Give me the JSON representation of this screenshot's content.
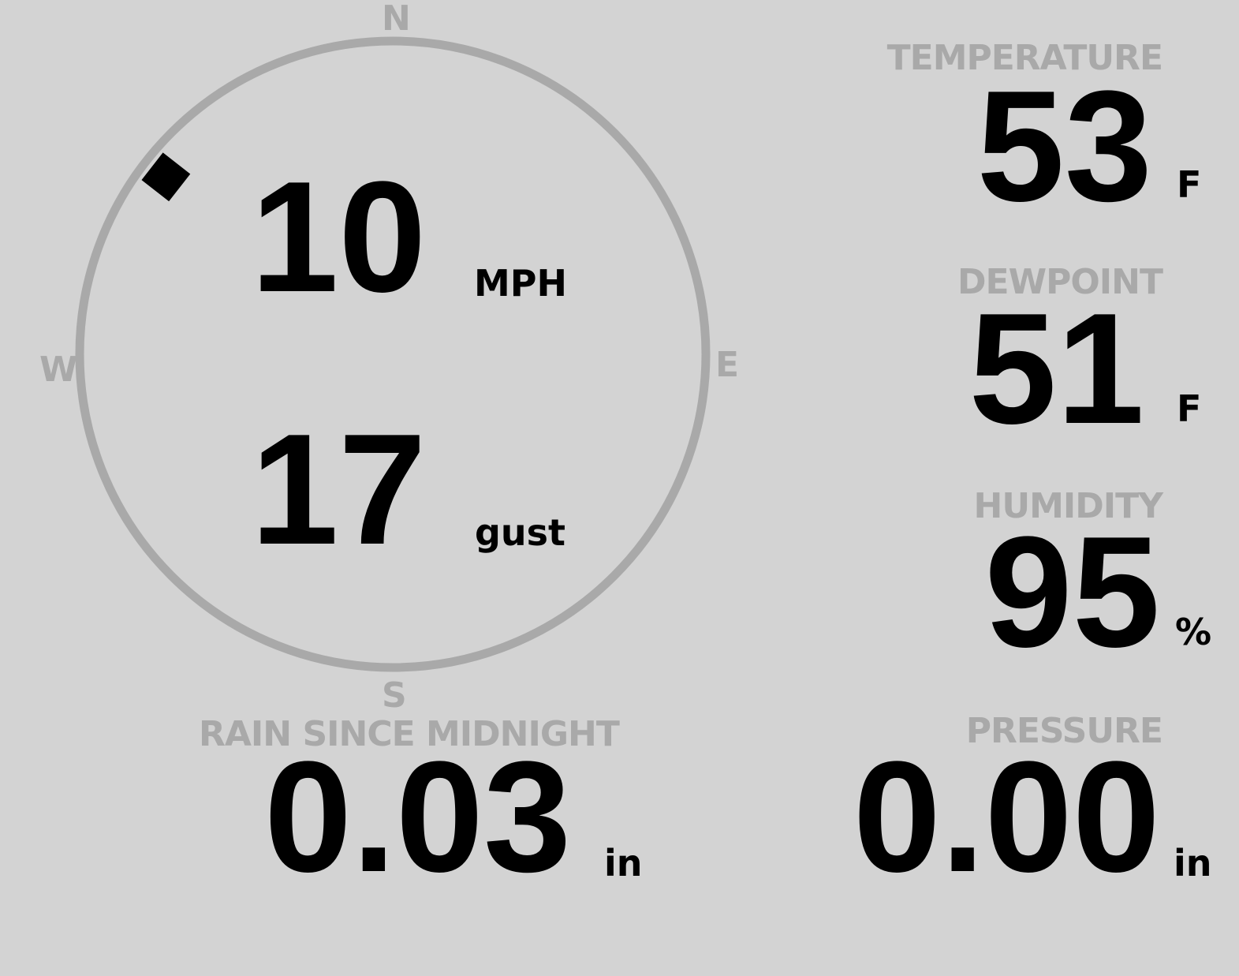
{
  "wind": {
    "compass": {
      "n": "N",
      "e": "E",
      "s": "S",
      "w": "W"
    },
    "direction_deg": 308,
    "speed": "10",
    "speed_unit": "MPH",
    "gust": "17",
    "gust_unit": "gust"
  },
  "temperature": {
    "label": "TEMPERATURE",
    "value": "53",
    "unit": "F"
  },
  "dewpoint": {
    "label": "DEWPOINT",
    "value": "51",
    "unit": "F"
  },
  "humidity": {
    "label": "HUMIDITY",
    "value": "95",
    "unit": "%"
  },
  "rain": {
    "label": "RAIN SINCE MIDNIGHT",
    "value": "0.03",
    "unit": "in"
  },
  "pressure": {
    "label": "PRESSURE",
    "value": "0.00",
    "unit": "in"
  },
  "colors": {
    "background": "#d3d3d3",
    "label": "#a9a9a9",
    "value": "#000000"
  }
}
